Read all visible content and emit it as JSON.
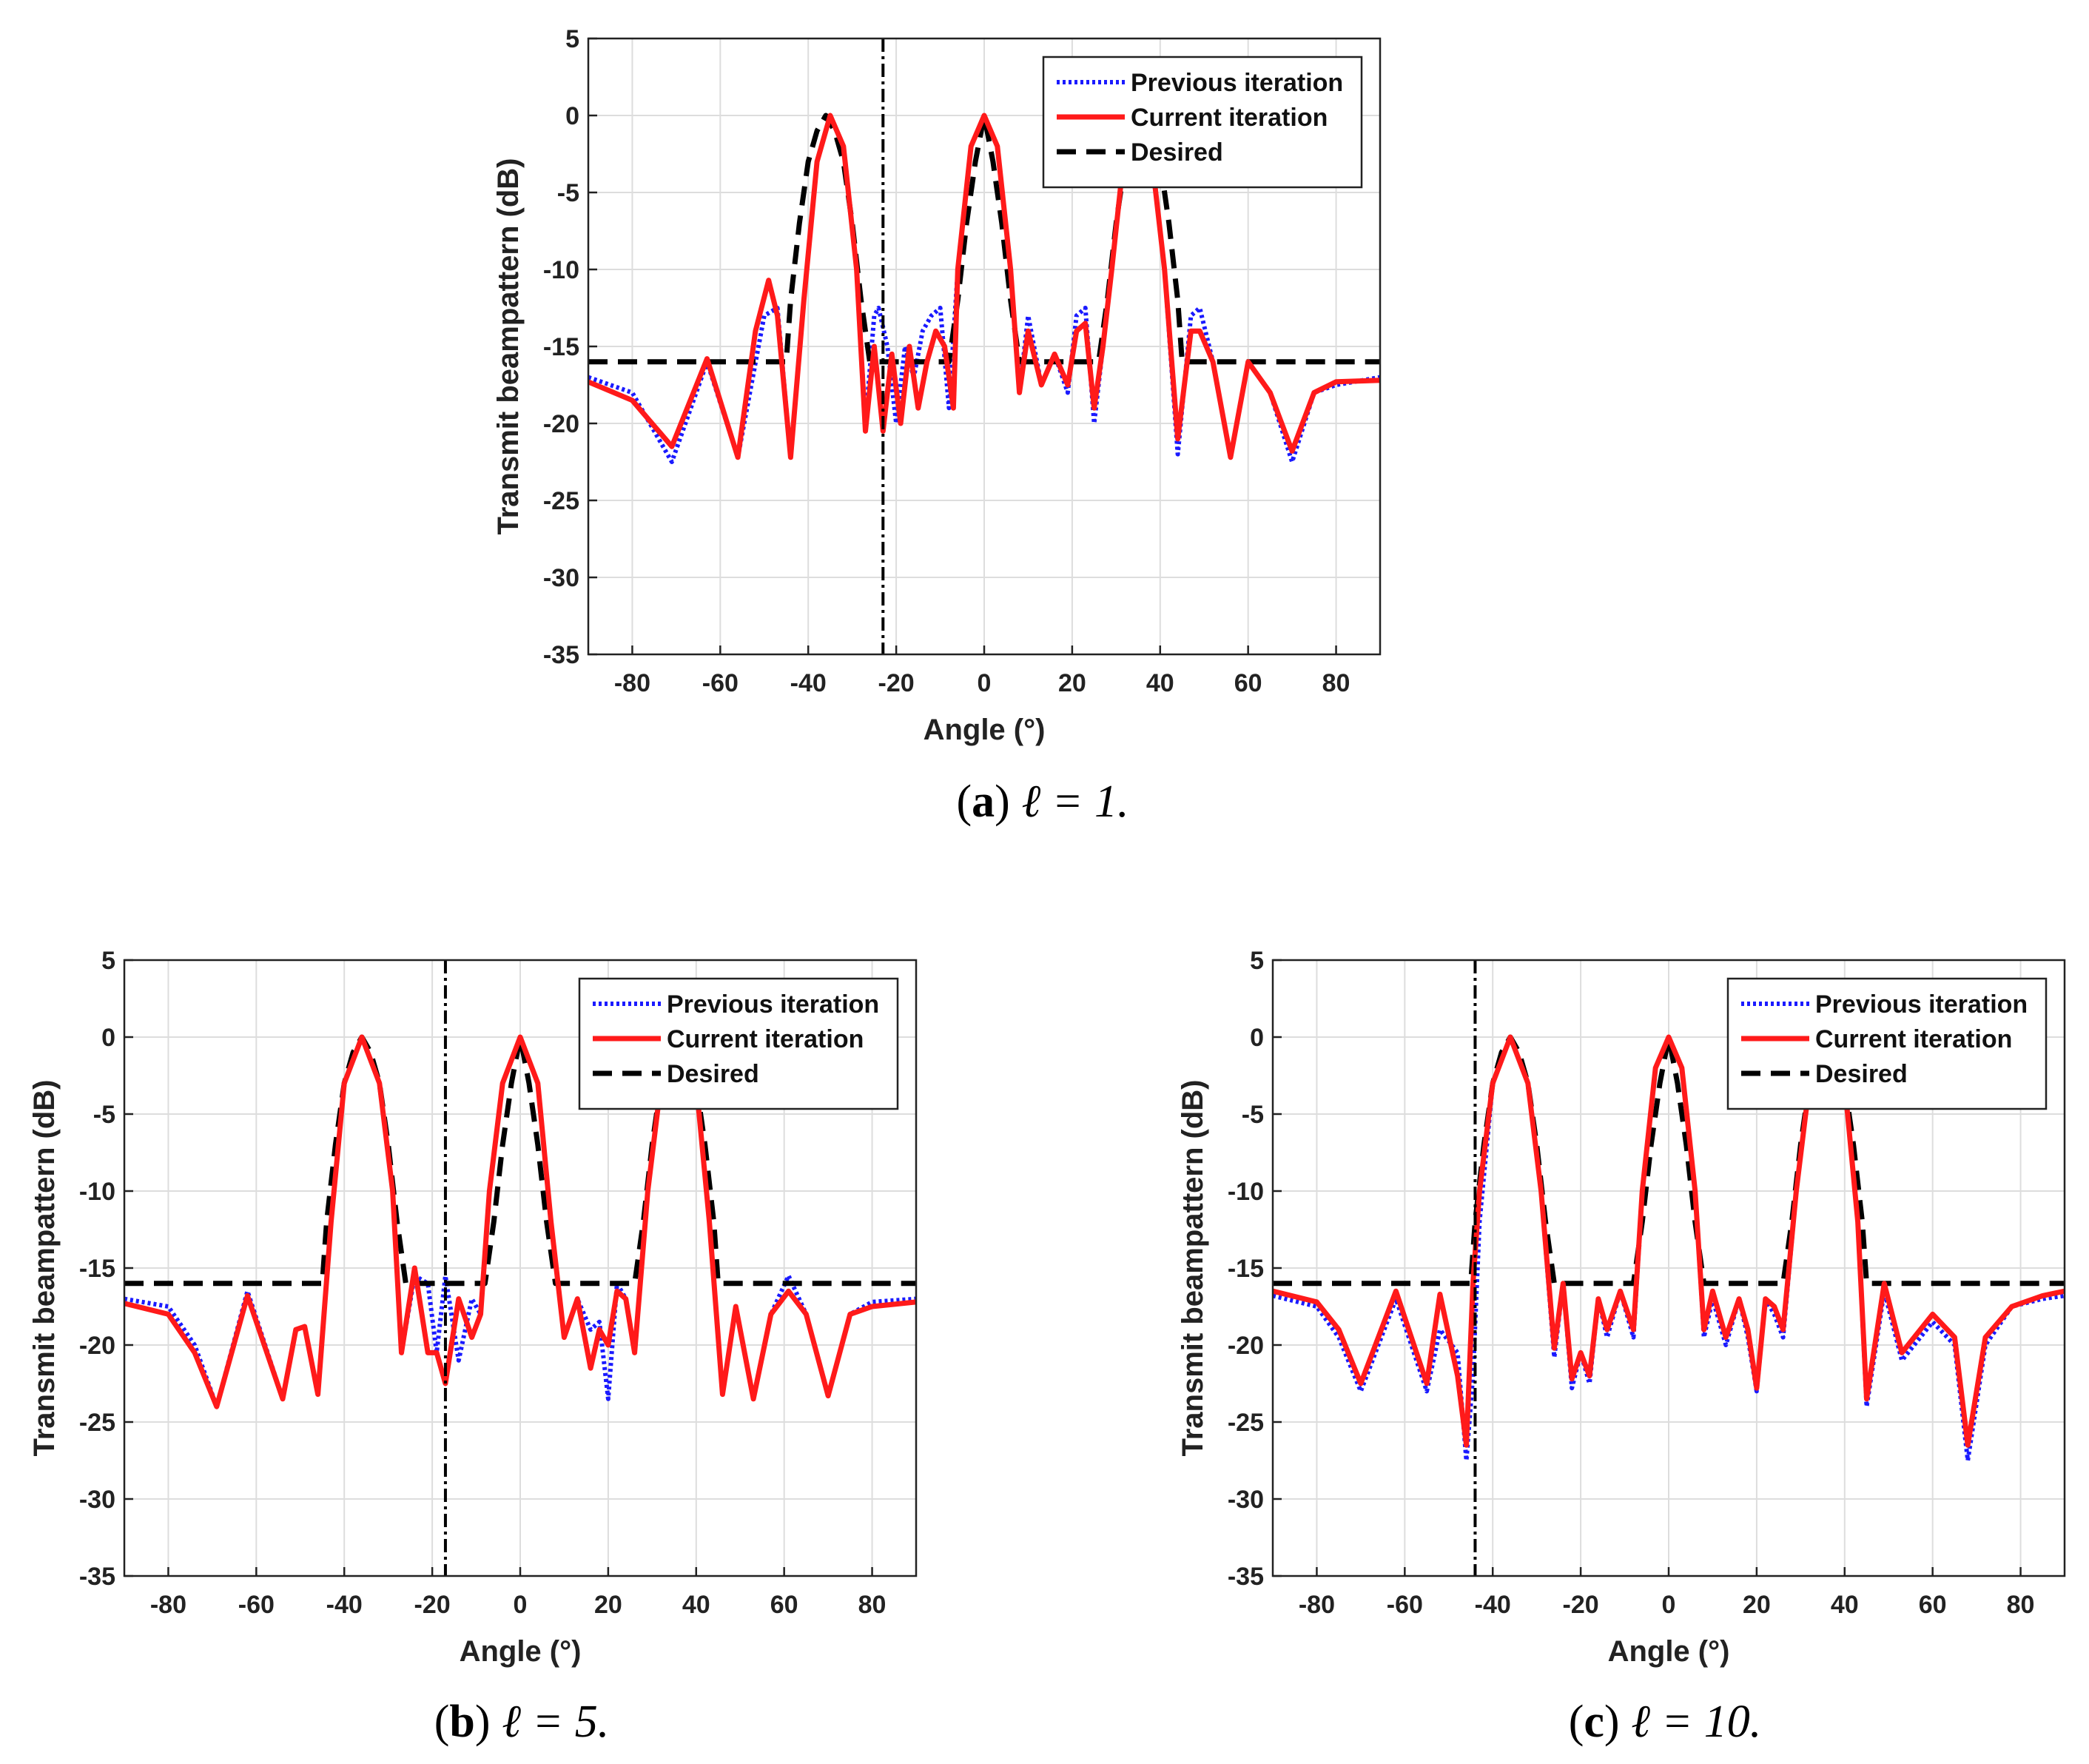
{
  "figure": {
    "panels": [
      {
        "id": "a",
        "caption_letter": "a",
        "caption_math": "ℓ = 1."
      },
      {
        "id": "b",
        "caption_letter": "b",
        "caption_math": "ℓ = 5."
      },
      {
        "id": "c",
        "caption_letter": "c",
        "caption_math": "ℓ = 10."
      }
    ]
  },
  "colors": {
    "previous": "#1a1aff",
    "current": "#ff1a1a",
    "desired": "#000000",
    "grid": "#dddddd",
    "axis": "#222222",
    "marker": "#000000"
  },
  "chart_data": [
    {
      "id": "a",
      "type": "line",
      "xlabel": "Angle (°)",
      "ylabel": "Transmit beampattern (dB)",
      "xlim": [
        -90,
        90
      ],
      "ylim": [
        -35,
        5
      ],
      "xticks": [
        -80,
        -60,
        -40,
        -20,
        0,
        20,
        40,
        60,
        80
      ],
      "yticks": [
        5,
        0,
        -5,
        -10,
        -15,
        -20,
        -25,
        -30,
        -35
      ],
      "grid": true,
      "legend_position": "top-right",
      "marker_angle": -23,
      "series": [
        {
          "name": "Previous iteration",
          "style": "dotted",
          "color_key": "previous",
          "x": [
            -90,
            -80,
            -71,
            -63,
            -56,
            -50,
            -47,
            -44,
            -41,
            -38,
            -35,
            -32,
            -29,
            -27,
            -25,
            -24,
            -22,
            -20,
            -18,
            -16,
            -14,
            -12,
            -10,
            -8,
            -6,
            -3,
            0,
            3,
            6,
            8,
            10,
            13,
            16,
            19,
            21,
            23,
            25,
            27,
            29,
            32,
            35,
            38,
            41,
            44,
            47,
            49,
            52,
            56,
            60,
            65,
            70,
            75,
            80,
            90
          ],
          "y": [
            -17,
            -18,
            -22.5,
            -16,
            -22.2,
            -13,
            -12.5,
            -22.2,
            -12,
            -3,
            0,
            -2,
            -10,
            -20,
            -13,
            -12.5,
            -15,
            -20,
            -15,
            -17,
            -14,
            -13,
            -12.5,
            -19,
            -10,
            -2,
            0,
            -2,
            -10,
            -18,
            -13,
            -17.5,
            -15.5,
            -18,
            -13,
            -12.5,
            -20,
            -15,
            -10,
            -2,
            0,
            -2.5,
            -10,
            -22,
            -13,
            -12.5,
            -16,
            -22.2,
            -16,
            -18,
            -22.5,
            -18,
            -17.5,
            -17
          ]
        },
        {
          "name": "Current iteration",
          "style": "solid",
          "color_key": "current",
          "x": [
            -90,
            -80,
            -71,
            -63,
            -56,
            -52,
            -49,
            -47,
            -44,
            -41,
            -38,
            -35,
            -32,
            -29,
            -27,
            -25,
            -23,
            -21,
            -19,
            -17,
            -15,
            -13,
            -11,
            -9,
            -7,
            -6,
            -3,
            0,
            3,
            6,
            8,
            10,
            13,
            16,
            19,
            21,
            23,
            25,
            27,
            29,
            32,
            35,
            38,
            41,
            44,
            47,
            49,
            52,
            56,
            60,
            65,
            70,
            75,
            80,
            90
          ],
          "y": [
            -17.3,
            -18.5,
            -21.5,
            -15.8,
            -22.2,
            -14,
            -10.7,
            -13,
            -22.2,
            -12,
            -3,
            0,
            -2,
            -10,
            -20.5,
            -15,
            -20.5,
            -15.5,
            -20,
            -15,
            -19,
            -16,
            -14,
            -15,
            -19,
            -10,
            -2,
            0,
            -2,
            -10,
            -18,
            -14,
            -17.5,
            -15.5,
            -17.5,
            -14,
            -13.5,
            -19,
            -15,
            -10,
            -2,
            0,
            -2.5,
            -10,
            -21,
            -14,
            -14,
            -16,
            -22.2,
            -16,
            -18,
            -21.8,
            -18,
            -17.3,
            -17.2
          ]
        },
        {
          "name": "Desired",
          "style": "dashed",
          "color_key": "desired",
          "x": [
            -90,
            -45,
            -44,
            -42,
            -40,
            -38,
            -36,
            -34,
            -32,
            -30,
            -28,
            -26,
            -26,
            -8,
            -8,
            -6,
            -4,
            -2,
            0,
            2,
            4,
            6,
            8,
            8,
            26,
            26,
            28,
            30,
            32,
            34,
            36,
            38,
            40,
            42,
            44,
            45,
            90
          ],
          "y": [
            -16,
            -16,
            -12,
            -7,
            -3,
            -1,
            0,
            -1,
            -3,
            -7,
            -12,
            -16,
            -16,
            -16,
            -16,
            -12,
            -7,
            -3,
            0,
            -3,
            -7,
            -12,
            -16,
            -16,
            -16,
            -16,
            -12,
            -7,
            -3,
            -1,
            0,
            -1,
            -3,
            -7,
            -12,
            -16,
            -16
          ]
        }
      ]
    },
    {
      "id": "b",
      "type": "line",
      "xlabel": "Angle (°)",
      "ylabel": "Transmit beampattern (dB)",
      "xlim": [
        -90,
        90
      ],
      "ylim": [
        -35,
        5
      ],
      "xticks": [
        -80,
        -60,
        -40,
        -20,
        0,
        20,
        40,
        60,
        80
      ],
      "yticks": [
        5,
        0,
        -5,
        -10,
        -15,
        -20,
        -25,
        -30,
        -35
      ],
      "grid": true,
      "legend_position": "top-right",
      "marker_angle": -17,
      "series": [
        {
          "name": "Previous iteration",
          "style": "dotted",
          "color_key": "previous",
          "x": [
            -90,
            -80,
            -74,
            -69,
            -62,
            -54,
            -51,
            -49,
            -46,
            -43,
            -40,
            -36,
            -32,
            -29,
            -27,
            -24,
            -21,
            -19,
            -17,
            -14,
            -11,
            -9,
            -7,
            -4,
            0,
            4,
            7,
            10,
            13,
            16,
            18,
            20,
            22,
            24,
            26,
            29,
            32,
            36,
            40,
            43,
            46,
            49,
            53,
            57,
            61,
            65,
            70,
            75,
            80,
            90
          ],
          "y": [
            -17,
            -17.5,
            -20,
            -24,
            -16.5,
            -23.5,
            -19,
            -18.8,
            -23.2,
            -12,
            -3,
            0,
            -3,
            -10,
            -20.5,
            -15.5,
            -16,
            -20.5,
            -15.5,
            -21,
            -17,
            -18,
            -10,
            -3,
            0,
            -3,
            -12,
            -19.5,
            -17,
            -19,
            -18.5,
            -23.5,
            -16,
            -17,
            -20.5,
            -10,
            -3,
            0,
            -3,
            -12,
            -23.2,
            -17.5,
            -23.5,
            -18,
            -15.5,
            -18,
            -23.3,
            -18,
            -17.2,
            -17
          ]
        },
        {
          "name": "Current iteration",
          "style": "solid",
          "color_key": "current",
          "x": [
            -90,
            -80,
            -74,
            -69,
            -62,
            -54,
            -51,
            -49,
            -46,
            -43,
            -40,
            -36,
            -32,
            -29,
            -27,
            -24,
            -21,
            -19,
            -17,
            -14,
            -11,
            -9,
            -7,
            -4,
            0,
            4,
            7,
            10,
            13,
            16,
            18,
            20,
            22,
            24,
            26,
            29,
            32,
            36,
            40,
            43,
            46,
            49,
            53,
            57,
            61,
            65,
            70,
            75,
            80,
            90
          ],
          "y": [
            -17.3,
            -18,
            -20.5,
            -24,
            -16.8,
            -23.5,
            -19,
            -18.8,
            -23.2,
            -12,
            -3,
            0,
            -3,
            -10,
            -20.5,
            -15,
            -20.5,
            -20.5,
            -22.5,
            -17,
            -19.5,
            -18,
            -10,
            -3,
            0,
            -3,
            -12,
            -19.5,
            -17,
            -21.5,
            -19,
            -20,
            -16.5,
            -17,
            -20.5,
            -10,
            -3,
            0,
            -3,
            -12,
            -23.2,
            -17.5,
            -23.5,
            -18,
            -16.5,
            -18,
            -23.3,
            -18,
            -17.5,
            -17.2
          ]
        },
        {
          "name": "Desired",
          "style": "dashed",
          "color_key": "desired",
          "x": [
            -90,
            -45,
            -44,
            -42,
            -40,
            -38,
            -36,
            -34,
            -32,
            -30,
            -28,
            -26,
            -26,
            -8,
            -8,
            -6,
            -4,
            -2,
            0,
            2,
            4,
            6,
            8,
            8,
            26,
            26,
            28,
            30,
            32,
            34,
            36,
            38,
            40,
            42,
            44,
            45,
            90
          ],
          "y": [
            -16,
            -16,
            -12,
            -7,
            -3,
            -1,
            0,
            -1,
            -3,
            -7,
            -12,
            -16,
            -16,
            -16,
            -16,
            -12,
            -7,
            -3,
            0,
            -3,
            -7,
            -12,
            -16,
            -16,
            -16,
            -16,
            -12,
            -7,
            -3,
            -1,
            0,
            -1,
            -3,
            -7,
            -12,
            -16,
            -16
          ]
        }
      ]
    },
    {
      "id": "c",
      "type": "line",
      "xlabel": "Angle (°)",
      "ylabel": "Transmit beampattern (dB)",
      "xlim": [
        -90,
        90
      ],
      "ylim": [
        -35,
        5
      ],
      "xticks": [
        -80,
        -60,
        -40,
        -20,
        0,
        20,
        40,
        60,
        80
      ],
      "yticks": [
        5,
        0,
        -5,
        -10,
        -15,
        -20,
        -25,
        -30,
        -35
      ],
      "grid": true,
      "legend_position": "top-right",
      "marker_angle": -44,
      "series": [
        {
          "name": "Previous iteration",
          "style": "dotted",
          "color_key": "previous",
          "x": [
            -90,
            -80,
            -75,
            -70,
            -62,
            -55,
            -52,
            -48,
            -46,
            -44.5,
            -43,
            -40,
            -36,
            -32,
            -29,
            -26,
            -24,
            -22,
            -20,
            -18,
            -16,
            -14,
            -11,
            -8,
            -6,
            -3,
            0,
            3,
            6,
            8,
            10,
            13,
            16,
            18,
            20,
            22,
            24,
            26,
            29,
            32,
            36,
            40,
            43,
            45,
            49,
            53,
            60,
            65,
            68,
            72,
            78,
            85,
            90
          ],
          "y": [
            -16.8,
            -17.5,
            -19.5,
            -23,
            -17,
            -23,
            -19,
            -20.5,
            -27.5,
            -22,
            -12,
            -3,
            0,
            -3,
            -10,
            -20.8,
            -16,
            -22.8,
            -20.5,
            -22.5,
            -17,
            -19.5,
            -16.5,
            -19.5,
            -10,
            -2,
            0,
            -2,
            -10,
            -19.5,
            -17,
            -20,
            -17,
            -19.5,
            -23,
            -17,
            -18,
            -19.5,
            -10,
            -3,
            0,
            -3,
            -12,
            -24,
            -16.5,
            -21,
            -18.5,
            -20,
            -27.5,
            -20,
            -17.5,
            -17,
            -16.8
          ]
        },
        {
          "name": "Current iteration",
          "style": "solid",
          "color_key": "current",
          "x": [
            -90,
            -80,
            -75,
            -70,
            -62,
            -55,
            -52,
            -48,
            -46,
            -44.5,
            -43,
            -40,
            -36,
            -32,
            -29,
            -26,
            -24,
            -22,
            -20,
            -18,
            -16,
            -14,
            -11,
            -8,
            -6,
            -3,
            0,
            3,
            6,
            8,
            10,
            13,
            16,
            18,
            20,
            22,
            24,
            26,
            29,
            32,
            36,
            40,
            43,
            45,
            49,
            53,
            60,
            65,
            68,
            72,
            78,
            85,
            90
          ],
          "y": [
            -16.5,
            -17.2,
            -19,
            -22.5,
            -16.5,
            -22.5,
            -16.7,
            -22,
            -26.5,
            -16,
            -10,
            -3,
            0,
            -3,
            -10,
            -20.2,
            -16,
            -22.2,
            -20.5,
            -22,
            -17,
            -19,
            -16.5,
            -19,
            -10,
            -2,
            0,
            -2,
            -10,
            -19,
            -16.5,
            -19.5,
            -17,
            -19,
            -22.8,
            -17,
            -17.5,
            -19,
            -10,
            -3,
            0,
            -3,
            -12,
            -23.5,
            -16,
            -20.5,
            -18,
            -19.5,
            -26.5,
            -19.5,
            -17.5,
            -16.8,
            -16.5
          ]
        },
        {
          "name": "Desired",
          "style": "dashed",
          "color_key": "desired",
          "x": [
            -90,
            -45,
            -44,
            -42,
            -40,
            -38,
            -36,
            -34,
            -32,
            -30,
            -28,
            -26,
            -26,
            -8,
            -8,
            -6,
            -4,
            -2,
            0,
            2,
            4,
            6,
            8,
            8,
            26,
            26,
            28,
            30,
            32,
            34,
            36,
            38,
            40,
            42,
            44,
            45,
            90
          ],
          "y": [
            -16,
            -16,
            -12,
            -7,
            -3,
            -1,
            0,
            -1,
            -3,
            -7,
            -12,
            -16,
            -16,
            -16,
            -16,
            -12,
            -7,
            -3,
            0,
            -3,
            -7,
            -12,
            -16,
            -16,
            -16,
            -16,
            -12,
            -7,
            -3,
            -1,
            0,
            -1,
            -3,
            -7,
            -12,
            -16,
            -16
          ]
        }
      ]
    }
  ]
}
